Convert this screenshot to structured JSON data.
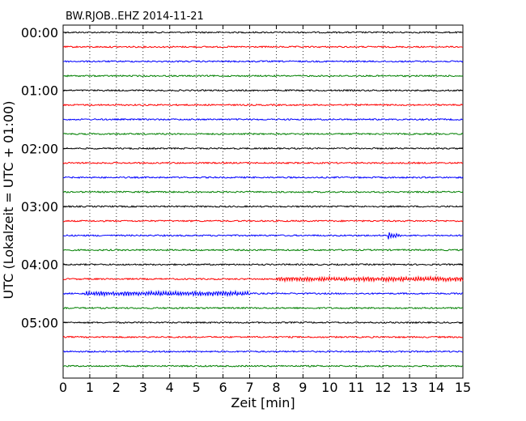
{
  "chart_data": {
    "type": "line",
    "title": "BW.RJOB..EHZ 2014-11-21",
    "xlabel": "Zeit  [min]",
    "ylabel": "UTC (Lokalzeit = UTC + 01:00)",
    "xlim": [
      0,
      15
    ],
    "xticks": [
      "0",
      "1",
      "2",
      "3",
      "4",
      "5",
      "6",
      "7",
      "8",
      "9",
      "10",
      "11",
      "12",
      "13",
      "14",
      "15"
    ],
    "ytick_labels": [
      "00:00",
      "01:00",
      "02:00",
      "03:00",
      "04:00",
      "05:00"
    ],
    "grid": "vertical dotted",
    "trace_colors": [
      "#000000",
      "#ff0000",
      "#0000ff",
      "#008000"
    ],
    "traces": [
      {
        "start": "00:00",
        "events": []
      },
      {
        "start": "00:15",
        "events": []
      },
      {
        "start": "00:30",
        "events": []
      },
      {
        "start": "00:45",
        "events": []
      },
      {
        "start": "01:00",
        "events": []
      },
      {
        "start": "01:15",
        "events": []
      },
      {
        "start": "01:30",
        "events": []
      },
      {
        "start": "01:45",
        "events": []
      },
      {
        "start": "02:00",
        "events": []
      },
      {
        "start": "02:15",
        "events": []
      },
      {
        "start": "02:30",
        "events": []
      },
      {
        "start": "02:45",
        "events": []
      },
      {
        "start": "03:00",
        "events": []
      },
      {
        "start": "03:15",
        "events": []
      },
      {
        "start": "03:30",
        "events": [
          {
            "t0": 12.2,
            "t1": 13.1
          }
        ]
      },
      {
        "start": "03:45",
        "events": []
      },
      {
        "start": "04:00",
        "events": []
      },
      {
        "start": "04:15",
        "events": [
          {
            "t0": 8.0,
            "t1": 15.0
          }
        ]
      },
      {
        "start": "04:30",
        "events": [
          {
            "t0": 0.8,
            "t1": 7.0
          }
        ]
      },
      {
        "start": "04:45",
        "events": []
      },
      {
        "start": "05:00",
        "events": []
      },
      {
        "start": "05:15",
        "events": []
      },
      {
        "start": "05:30",
        "events": []
      },
      {
        "start": "05:45",
        "events": []
      }
    ]
  }
}
